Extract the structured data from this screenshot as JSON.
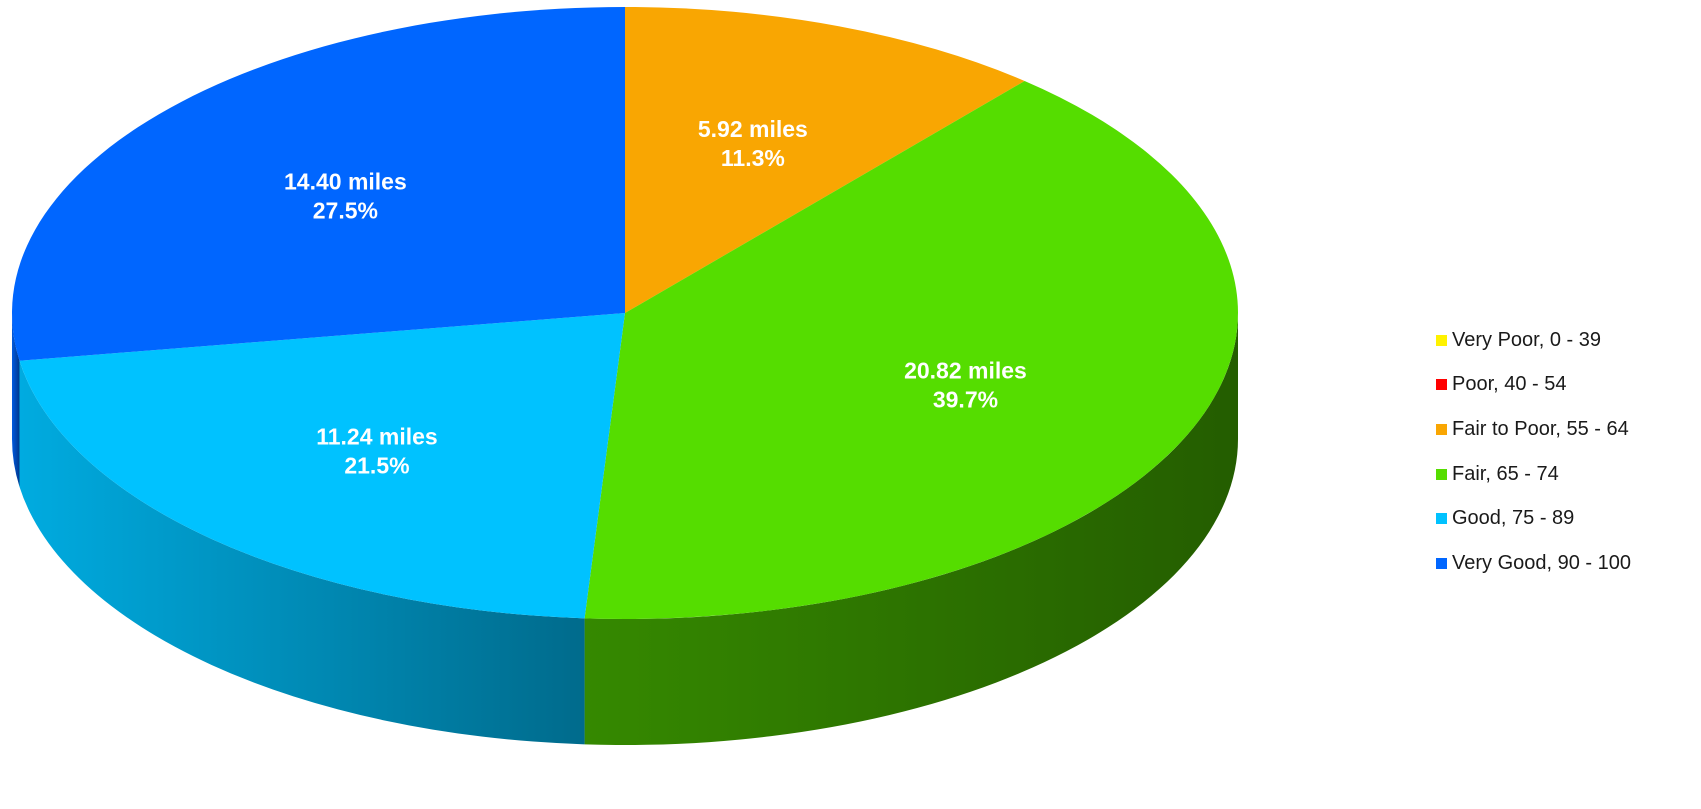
{
  "chart_data": {
    "type": "pie",
    "style": "3d",
    "unit": "miles",
    "legend_position": "right",
    "slices": [
      {
        "name": "Very Poor, 0 - 39",
        "value": 0,
        "percent": 0,
        "color": "#FFF200",
        "value_label": "",
        "percent_label": ""
      },
      {
        "name": "Poor, 40 - 54",
        "value": 0,
        "percent": 0,
        "color": "#FF0000",
        "value_label": "",
        "percent_label": ""
      },
      {
        "name": "Fair to Poor, 55 - 64",
        "value": 5.92,
        "percent": 11.3,
        "color": "#F9A602",
        "value_label": "5.92 miles",
        "percent_label": "11.3%"
      },
      {
        "name": "Fair, 65 - 74",
        "value": 20.82,
        "percent": 39.7,
        "color": "#55DD00",
        "value_label": "20.82 miles",
        "percent_label": "39.7%"
      },
      {
        "name": "Good, 75 - 89",
        "value": 11.24,
        "percent": 21.5,
        "color": "#00C2FF",
        "value_label": "11.24 miles",
        "percent_label": "21.5%"
      },
      {
        "name": "Very Good, 90 - 100",
        "value": 14.4,
        "percent": 27.5,
        "color": "#0066FF",
        "value_label": "14.40 miles",
        "percent_label": "27.5%"
      }
    ]
  }
}
